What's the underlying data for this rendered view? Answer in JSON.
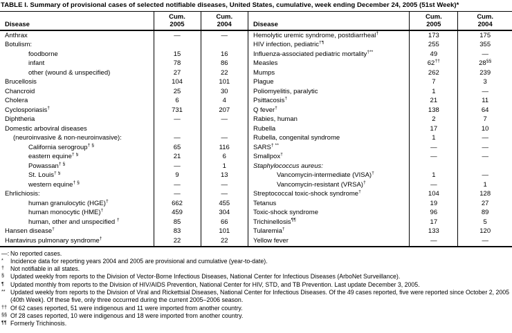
{
  "title": "TABLE I. Summary of provisional cases of selected notifiable diseases, United States, cumulative, week ending December 24, 2005 (51st Week)*",
  "columns": {
    "disease": "Disease",
    "cum": "Cum.",
    "y2005": "2005",
    "y2004": "2004"
  },
  "left_rows": [
    {
      "label": "Anthrax",
      "indent": 0,
      "v05": "—",
      "v04": "—"
    },
    {
      "label": "Botulism:",
      "indent": 0,
      "v05": "",
      "v04": ""
    },
    {
      "label": "foodborne",
      "indent": 2,
      "v05": "15",
      "v04": "16"
    },
    {
      "label": "infant",
      "indent": 2,
      "v05": "78",
      "v04": "86"
    },
    {
      "label": "other (wound & unspecified)",
      "indent": 2,
      "v05": "27",
      "v04": "22"
    },
    {
      "label": "Brucellosis",
      "indent": 0,
      "v05": "104",
      "v04": "101"
    },
    {
      "label": "Chancroid",
      "indent": 0,
      "v05": "25",
      "v04": "30"
    },
    {
      "label": "Cholera",
      "indent": 0,
      "v05": "6",
      "v04": "4"
    },
    {
      "label": "Cyclosporiasis",
      "sup": "†",
      "indent": 0,
      "v05": "731",
      "v04": "207"
    },
    {
      "label": "Diphtheria",
      "indent": 0,
      "v05": "—",
      "v04": "—"
    },
    {
      "label": "Domestic arboviral diseases",
      "indent": 0,
      "v05": "",
      "v04": ""
    },
    {
      "label": "(neuroinvasive & non-neuroinvasive):",
      "indent": 1,
      "v05": "—",
      "v04": "—"
    },
    {
      "label": "California serogroup",
      "sup": "† §",
      "indent": 2,
      "v05": "65",
      "v04": "116"
    },
    {
      "label": "eastern equine",
      "sup": "† §",
      "indent": 2,
      "v05": "21",
      "v04": "6"
    },
    {
      "label": "Powassan",
      "sup": "† §",
      "indent": 2,
      "v05": "—",
      "v04": "1"
    },
    {
      "label": "St. Louis",
      "sup": "† §",
      "indent": 2,
      "v05": "9",
      "v04": "13"
    },
    {
      "label": "western equine",
      "sup": "† §",
      "indent": 2,
      "v05": "—",
      "v04": "—"
    },
    {
      "label": "Ehrlichiosis:",
      "indent": 0,
      "v05": "—",
      "v04": "—"
    },
    {
      "label": "human granulocytic (HGE)",
      "sup": "†",
      "indent": 2,
      "v05": "662",
      "v04": "455"
    },
    {
      "label": "human monocytic (HME)",
      "sup": "†",
      "indent": 2,
      "v05": "459",
      "v04": "304"
    },
    {
      "label": "human, other and unspecified ",
      "sup": "†",
      "indent": 2,
      "v05": "85",
      "v04": "66"
    },
    {
      "label": "Hansen disease",
      "sup": "†",
      "indent": 0,
      "v05": "83",
      "v04": "101"
    },
    {
      "label": "Hantavirus pulmonary syndrome",
      "sup": "†",
      "indent": 0,
      "v05": "22",
      "v04": "22"
    }
  ],
  "right_rows": [
    {
      "label": "Hemolytic uremic syndrome, postdiarrheal",
      "sup": "†",
      "indent": 0,
      "v05": "173",
      "v04": "175"
    },
    {
      "label": "HIV infection, pediatric",
      "sup": "†¶",
      "indent": 0,
      "v05": "255",
      "v04": "355"
    },
    {
      "label": "Influenza-associated pediatric mortality",
      "sup": "†**",
      "indent": 0,
      "v05": "49",
      "v04": "—"
    },
    {
      "label": "Measles",
      "indent": 0,
      "v05": "62",
      "s05": "††",
      "v04": "28",
      "s04": "§§"
    },
    {
      "label": "Mumps",
      "indent": 0,
      "v05": "262",
      "v04": "239"
    },
    {
      "label": "Plague",
      "indent": 0,
      "v05": "7",
      "v04": "3"
    },
    {
      "label": "Poliomyelitis, paralytic",
      "indent": 0,
      "v05": "1",
      "v04": "—"
    },
    {
      "label": "Psittacosis",
      "sup": "†",
      "indent": 0,
      "v05": "21",
      "v04": "11"
    },
    {
      "label": "Q fever",
      "sup": "†",
      "indent": 0,
      "v05": "138",
      "v04": "64"
    },
    {
      "label": "Rabies, human",
      "indent": 0,
      "v05": "2",
      "v04": "7"
    },
    {
      "label": "Rubella",
      "indent": 0,
      "v05": "17",
      "v04": "10"
    },
    {
      "label": "Rubella, congenital syndrome",
      "indent": 0,
      "v05": "1",
      "v04": "—"
    },
    {
      "label": "SARS",
      "sup": "† **",
      "indent": 0,
      "v05": "—",
      "v04": "—"
    },
    {
      "label": "Smallpox",
      "sup": "†",
      "indent": 0,
      "v05": "—",
      "v04": "—"
    },
    {
      "label": "Staphylococcus aureus:",
      "indent": 0,
      "italic": true,
      "v05": "",
      "v04": ""
    },
    {
      "label": "Vancomycin-intermediate (VISA)",
      "sup": "†",
      "indent": 2,
      "v05": "1",
      "v04": "—"
    },
    {
      "label": "Vancomycin-resistant (VRSA)",
      "sup": "†",
      "indent": 2,
      "v05": "—",
      "v04": "1"
    },
    {
      "label": "Streptococcal toxic-shock syndrome",
      "sup": "†",
      "indent": 0,
      "v05": "104",
      "v04": "128"
    },
    {
      "label": "Tetanus",
      "indent": 0,
      "v05": "19",
      "v04": "27"
    },
    {
      "label": "Toxic-shock syndrome",
      "indent": 0,
      "v05": "96",
      "v04": "89"
    },
    {
      "label": "Trichinellosis",
      "sup": "¶¶",
      "indent": 0,
      "v05": "17",
      "v04": "5"
    },
    {
      "label": "Tularemia",
      "sup": "†",
      "indent": 0,
      "v05": "133",
      "v04": "120"
    },
    {
      "label": "Yellow fever",
      "indent": 0,
      "v05": "—",
      "v04": "—"
    }
  ],
  "footnotes": [
    {
      "marker": "—:",
      "raised": false,
      "text": "No reported cases."
    },
    {
      "marker": "*",
      "raised": true,
      "text": "Incidence data for reporting years 2004 and 2005 are provisional and cumulative (year-to-date)."
    },
    {
      "marker": "†",
      "raised": true,
      "text": "Not notifiable in all states."
    },
    {
      "marker": "§",
      "raised": true,
      "text": "Updated weekly from reports to the Division of Vector-Borne Infectious Diseases, National Center for Infectious Diseases (ArboNet Surveillance)."
    },
    {
      "marker": "¶",
      "raised": true,
      "text": "Updated monthly from reports to the Division of HIV/AIDS Prevention, National Center for HIV, STD, and TB Prevention. Last update December 3, 2005."
    },
    {
      "marker": "**",
      "raised": true,
      "text": "Updated weekly from reports to the Division of Viral and Rickettsial Diseases, National Center for Infectious Diseases. Of the 49 cases reported, five were reported since October 2, 2005 (40th Week). Of these five, only three occurrred during the current 2005–2006 season."
    },
    {
      "marker": "††",
      "raised": true,
      "text": "Of 62 cases reported, 51 were indigenous and 11 were imported from another country."
    },
    {
      "marker": "§§",
      "raised": true,
      "text": "Of 28 cases reported, 10 were indigenous and 18 were imported from another country."
    },
    {
      "marker": "¶¶",
      "raised": true,
      "text": "Formerly Trichinosis."
    }
  ]
}
